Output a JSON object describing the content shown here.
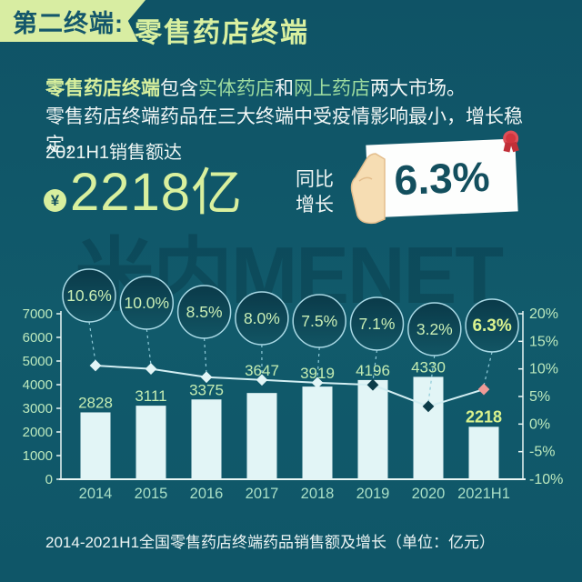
{
  "header": {
    "badge": "第二终端:",
    "title": "零售药店终端"
  },
  "intro": {
    "line1_parts": [
      {
        "text": "零售药店终端"
      },
      {
        "text": "包含"
      },
      {
        "text": "实体药店"
      },
      {
        "text": "和"
      },
      {
        "text": "网上药店"
      },
      {
        "text": "两大市场。"
      }
    ],
    "line2": "零售药店终端药品在三大终端中受疫情影响最小，增长稳定，"
  },
  "sales": {
    "label": "2021H1销售额达",
    "currency_symbol": "¥",
    "amount": "2218",
    "unit": "亿"
  },
  "yoy": {
    "label_line1": "同比",
    "label_line2": "增长",
    "value": "6.3%"
  },
  "watermark": "米内MENET",
  "caption": "2014-2021H1全国零售药店终端药品销售额及增长（单位：亿元）",
  "chart_data": {
    "type": "bar",
    "title": "2014-2021H1全国零售药店终端药品销售额及增长（单位：亿元）",
    "categories": [
      "2014",
      "2015",
      "2016",
      "2017",
      "2018",
      "2019",
      "2020",
      "2021H1"
    ],
    "series": [
      {
        "name": "销售额(亿元)",
        "type": "bar",
        "values": [
          2828,
          3111,
          3375,
          3647,
          3919,
          4196,
          4330,
          2218
        ]
      },
      {
        "name": "同比增长率(%)",
        "type": "line",
        "values": [
          10.6,
          10.0,
          8.5,
          8.0,
          7.5,
          7.1,
          3.2,
          6.3
        ]
      }
    ],
    "growth_labels": [
      "10.6%",
      "10.0%",
      "8.5%",
      "8.0%",
      "7.5%",
      "7.1%",
      "3.2%",
      "6.3%"
    ],
    "left_axis": {
      "min": 0,
      "max": 7000,
      "step": 1000,
      "ticks": [
        "7000",
        "6000",
        "5000",
        "4000",
        "3000",
        "2000",
        "1000",
        "0"
      ]
    },
    "right_axis": {
      "min": -10,
      "max": 20,
      "step": 5,
      "ticks": [
        "20%",
        "15%",
        "10%",
        "5%",
        "0%",
        "-5%",
        "-10%"
      ]
    },
    "legend_position": "none",
    "grid": false,
    "colors": {
      "background": "#10566a",
      "bar": "#e2f5f6",
      "bar_label": "#c3ecb2",
      "bar_label_highlight": "#d8f18c",
      "line": "#d2eef2",
      "marker_light": "#e2f5f6",
      "marker_dark": "#0c3c49",
      "marker_highlight": "#ef9b97",
      "axis": "#e9f6f4",
      "axis_label": "#bce9bd",
      "x_label": "#a9dfc6",
      "circle_fill_top": "#0a3a49",
      "circle_fill_bottom": "#125564",
      "circle_stroke": "#aadae6",
      "circle_text": "#c9eeb5",
      "circle_text_highlight": "#dbf38f",
      "accent_green": "#d8ef9e",
      "header_banner": "#d8eda2",
      "header_text": "#14576b"
    }
  }
}
